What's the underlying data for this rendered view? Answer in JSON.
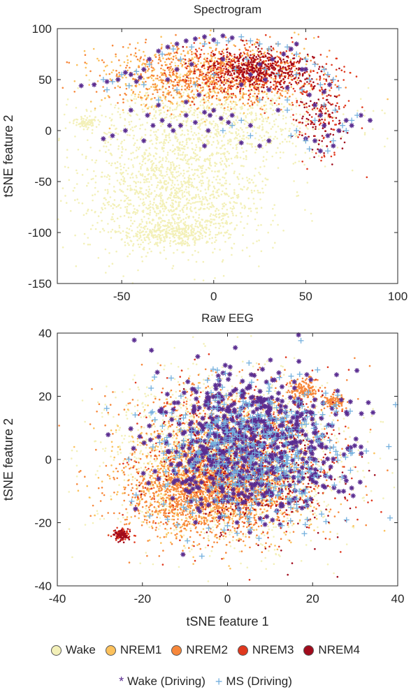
{
  "chart_data": [
    {
      "type": "scatter",
      "title": "Spectrogram",
      "xlabel": "",
      "ylabel": "tSNE feature 2",
      "xlim": [
        -85,
        100
      ],
      "ylim": [
        -150,
        100
      ],
      "xticks": [
        -50,
        0,
        50,
        100
      ],
      "yticks": [
        -150,
        -100,
        -50,
        0,
        50,
        100
      ],
      "grid": false,
      "clusters": [
        {
          "class": "wake",
          "cx": -20,
          "cy": -60,
          "sx": 25,
          "sy": 32,
          "n": 1400
        },
        {
          "class": "wake",
          "cx": 0,
          "cy": 10,
          "sx": 35,
          "sy": 22,
          "n": 900
        },
        {
          "class": "wake",
          "cx": -22,
          "cy": -100,
          "sx": 12,
          "sy": 6,
          "n": 300
        },
        {
          "class": "wake",
          "cx": -70,
          "cy": 8,
          "sx": 3,
          "sy": 3,
          "n": 80
        },
        {
          "class": "nrem1",
          "cx": -10,
          "cy": 55,
          "sx": 28,
          "sy": 18,
          "n": 450
        },
        {
          "class": "nrem2",
          "cx": 0,
          "cy": 55,
          "sx": 28,
          "sy": 14,
          "n": 700
        },
        {
          "class": "nrem3",
          "cx": 20,
          "cy": 58,
          "sx": 20,
          "sy": 12,
          "n": 420
        },
        {
          "class": "nrem4",
          "cx": 25,
          "cy": 60,
          "sx": 14,
          "sy": 9,
          "n": 380
        },
        {
          "class": "nrem3",
          "cx": 58,
          "cy": 20,
          "sx": 8,
          "sy": 25,
          "n": 120
        },
        {
          "class": "nrem4",
          "cx": 60,
          "cy": 10,
          "sx": 7,
          "sy": 18,
          "n": 90
        }
      ],
      "wake_driving": [
        [
          -65,
          45
        ],
        [
          -58,
          48
        ],
        [
          -45,
          55
        ],
        [
          -40,
          52
        ],
        [
          -38,
          60
        ],
        [
          -35,
          70
        ],
        [
          -30,
          78
        ],
        [
          -25,
          82
        ],
        [
          -20,
          85
        ],
        [
          -15,
          88
        ],
        [
          -10,
          90
        ],
        [
          -5,
          92
        ],
        [
          0,
          89
        ],
        [
          5,
          93
        ],
        [
          10,
          91
        ],
        [
          -52,
          50
        ],
        [
          -48,
          57
        ],
        [
          -42,
          48
        ],
        [
          -20,
          60
        ],
        [
          -12,
          65
        ],
        [
          -30,
          25
        ],
        [
          -28,
          10
        ],
        [
          -24,
          5
        ],
        [
          -22,
          0
        ],
        [
          -18,
          5
        ],
        [
          -15,
          15
        ],
        [
          -10,
          8
        ],
        [
          -5,
          18
        ],
        [
          0,
          20
        ],
        [
          4,
          12
        ],
        [
          8,
          8
        ],
        [
          -36,
          15
        ],
        [
          -33,
          5
        ],
        [
          -38,
          -10
        ],
        [
          -45,
          20
        ],
        [
          -48,
          0
        ],
        [
          -55,
          -5
        ],
        [
          -60,
          -8
        ],
        [
          -72,
          44
        ],
        [
          -5,
          -15
        ],
        [
          -2,
          15
        ],
        [
          10,
          15
        ],
        [
          15,
          -12
        ],
        [
          20,
          5
        ],
        [
          25,
          -15
        ],
        [
          30,
          -10
        ],
        [
          35,
          20
        ],
        [
          20,
          55
        ],
        [
          25,
          65
        ],
        [
          28,
          50
        ],
        [
          32,
          70
        ],
        [
          38,
          75
        ],
        [
          42,
          80
        ],
        [
          45,
          85
        ],
        [
          50,
          60
        ],
        [
          52,
          35
        ],
        [
          55,
          25
        ],
        [
          58,
          15
        ],
        [
          60,
          5
        ],
        [
          62,
          -5
        ],
        [
          65,
          -15
        ],
        [
          55,
          -10
        ],
        [
          50,
          -8
        ],
        [
          60,
          38
        ],
        [
          63,
          45
        ],
        [
          68,
          0
        ],
        [
          72,
          10
        ],
        [
          75,
          5
        ],
        [
          80,
          15
        ],
        [
          85,
          10
        ],
        [
          58,
          -20
        ],
        [
          48,
          60
        ],
        [
          40,
          42
        ],
        [
          30,
          40
        ],
        [
          15,
          45
        ],
        [
          5,
          70
        ],
        [
          -25,
          50
        ],
        [
          -15,
          28
        ],
        [
          -8,
          35
        ],
        [
          -3,
          0
        ]
      ],
      "ms_driving": [
        [
          -60,
          50
        ],
        [
          -55,
          48
        ],
        [
          -50,
          55
        ],
        [
          -42,
          58
        ],
        [
          -35,
          65
        ],
        [
          -28,
          75
        ],
        [
          -22,
          80
        ],
        [
          -18,
          70
        ],
        [
          -12,
          82
        ],
        [
          -5,
          85
        ],
        [
          2,
          86
        ],
        [
          8,
          88
        ],
        [
          15,
          92
        ],
        [
          20,
          88
        ],
        [
          25,
          85
        ],
        [
          30,
          80
        ],
        [
          35,
          85
        ],
        [
          40,
          82
        ],
        [
          45,
          75
        ],
        [
          50,
          70
        ],
        [
          55,
          65
        ],
        [
          60,
          60
        ],
        [
          62,
          55
        ],
        [
          65,
          50
        ],
        [
          68,
          42
        ],
        [
          58,
          45
        ],
        [
          52,
          50
        ],
        [
          45,
          55
        ],
        [
          40,
          30
        ],
        [
          25,
          30
        ],
        [
          15,
          10
        ],
        [
          10,
          5
        ],
        [
          5,
          0
        ],
        [
          20,
          -5
        ],
        [
          40,
          20
        ],
        [
          45,
          0
        ],
        [
          50,
          -10
        ],
        [
          55,
          10
        ],
        [
          65,
          -10
        ],
        [
          70,
          5
        ],
        [
          75,
          10
        ],
        [
          78,
          15
        ],
        [
          -58,
          40
        ],
        [
          -46,
          44
        ],
        [
          -38,
          45
        ],
        [
          -30,
          30
        ],
        [
          -20,
          40
        ],
        [
          -10,
          45
        ],
        [
          0,
          55
        ],
        [
          12,
          60
        ],
        [
          18,
          70
        ],
        [
          28,
          60
        ],
        [
          35,
          55
        ],
        [
          48,
          40
        ],
        [
          60,
          25
        ],
        [
          66,
          20
        ],
        [
          72,
          0
        ],
        [
          62,
          -20
        ],
        [
          52,
          -18
        ],
        [
          42,
          -5
        ]
      ]
    },
    {
      "type": "scatter",
      "title": "Raw EEG",
      "xlabel": "tSNE feature 1",
      "ylabel": "tSNE feature 2",
      "xlim": [
        -40,
        40
      ],
      "ylim": [
        -40,
        40
      ],
      "xticks": [
        -40,
        -20,
        0,
        20,
        40
      ],
      "yticks": [
        -40,
        -20,
        0,
        20,
        40
      ],
      "grid": false,
      "clusters": [
        {
          "class": "wake",
          "cx": 0,
          "cy": 0,
          "sx": 14,
          "sy": 13,
          "n": 1400
        },
        {
          "class": "wake",
          "cx": -3,
          "cy": 0,
          "sx": 12,
          "sy": 12,
          "n": 500
        },
        {
          "class": "nrem1",
          "cx": -3,
          "cy": -5,
          "sx": 12,
          "sy": 10,
          "n": 800
        },
        {
          "class": "nrem2",
          "cx": -5,
          "cy": -10,
          "sx": 10,
          "sy": 7,
          "n": 1700
        },
        {
          "class": "nrem2",
          "cx": 0,
          "cy": 10,
          "sx": 13,
          "sy": 9,
          "n": 500
        },
        {
          "class": "nrem2",
          "cx": 18,
          "cy": 22,
          "sx": 2,
          "sy": 1.5,
          "n": 140
        },
        {
          "class": "nrem2",
          "cx": 25,
          "cy": 18,
          "sx": 1.2,
          "sy": 1.2,
          "n": 110
        },
        {
          "class": "nrem3",
          "cx": 5,
          "cy": 0,
          "sx": 13,
          "sy": 12,
          "n": 500
        },
        {
          "class": "nrem3",
          "cx": -25,
          "cy": -24,
          "sx": 1.2,
          "sy": 1.0,
          "n": 70
        },
        {
          "class": "nrem4",
          "cx": -25,
          "cy": -24,
          "sx": 0.9,
          "sy": 0.8,
          "n": 70
        },
        {
          "class": "nrem4",
          "cx": 8,
          "cy": -5,
          "sx": 10,
          "sy": 10,
          "n": 350
        }
      ],
      "wake_driving_region": {
        "cx": 5,
        "cy": 5,
        "sx": 11,
        "sy": 11,
        "n": 700
      },
      "ms_driving_region": {
        "cx": 5,
        "cy": 3,
        "sx": 11,
        "sy": 11,
        "n": 500
      }
    }
  ],
  "colors": {
    "wake": "#f3f0b8",
    "nrem1": "#fcc15c",
    "nrem2": "#f7873a",
    "nrem3": "#e0381e",
    "nrem4": "#a10b1c",
    "wake_driving": "#5a2d91",
    "ms_driving": "#74b0de"
  },
  "legend": {
    "row1": [
      {
        "key": "wake",
        "label": "Wake"
      },
      {
        "key": "nrem1",
        "label": "NREM1"
      },
      {
        "key": "nrem2",
        "label": "NREM2"
      },
      {
        "key": "nrem3",
        "label": "NREM3"
      },
      {
        "key": "nrem4",
        "label": "NREM4"
      }
    ],
    "row2": [
      {
        "key": "wake_driving",
        "marker": "*",
        "label": "Wake (Driving)"
      },
      {
        "key": "ms_driving",
        "marker": "+",
        "label": "MS (Driving)"
      }
    ]
  }
}
